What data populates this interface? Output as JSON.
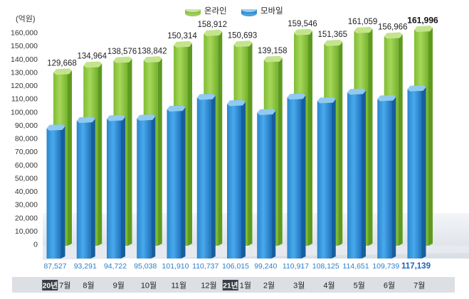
{
  "chart_data": {
    "type": "bar",
    "unit_label": "(억원)",
    "legend": [
      {
        "name": "온라인",
        "color": "#8cc63f"
      },
      {
        "name": "모바일",
        "color": "#2f8fd6"
      }
    ],
    "legend_position": "top-center",
    "year_tags": [
      {
        "index": 0,
        "text": "20년"
      },
      {
        "index": 6,
        "text": "21년"
      }
    ],
    "categories": [
      "7월",
      "8월",
      "9월",
      "10월",
      "11월",
      "12월",
      "1월",
      "2월",
      "3월",
      "4월",
      "5월",
      "6월",
      "7월"
    ],
    "series": [
      {
        "name": "온라인",
        "color": "#8cc63f",
        "values": [
          129668,
          134964,
          138576,
          138842,
          150314,
          158912,
          150693,
          139158,
          159546,
          151365,
          161059,
          156966,
          161996
        ],
        "labels": [
          "129,668",
          "134,964",
          "138,576",
          "138,842",
          "150,314",
          "158,912",
          "150,693",
          "139,158",
          "159,546",
          "151,365",
          "161,059",
          "156,966",
          "161,996"
        ]
      },
      {
        "name": "모바일",
        "color": "#2f8fd6",
        "values": [
          87527,
          93291,
          94722,
          95038,
          101910,
          110737,
          106015,
          99240,
          110917,
          108125,
          114651,
          109739,
          117139
        ],
        "labels": [
          "87,527",
          "93,291",
          "94,722",
          "95,038",
          "101,910",
          "110,737",
          "106,015",
          "99,240",
          "110,917",
          "108,125",
          "114,651",
          "109,739",
          "117,139"
        ]
      }
    ],
    "ylim": [
      0,
      165000
    ],
    "yticks": [
      0,
      10000,
      20000,
      30000,
      40000,
      50000,
      60000,
      70000,
      80000,
      90000,
      100000,
      110000,
      120000,
      130000,
      140000,
      150000,
      160000
    ],
    "ytick_labels": [
      "0",
      "10,000",
      "20,000",
      "30,000",
      "40,000",
      "50,000",
      "60,000",
      "70,000",
      "80,000",
      "90,000",
      "100,000",
      "110,000",
      "120,000",
      "130,000",
      "140,000",
      "150,000",
      "160,000"
    ],
    "highlight_last": true,
    "grid": false
  }
}
